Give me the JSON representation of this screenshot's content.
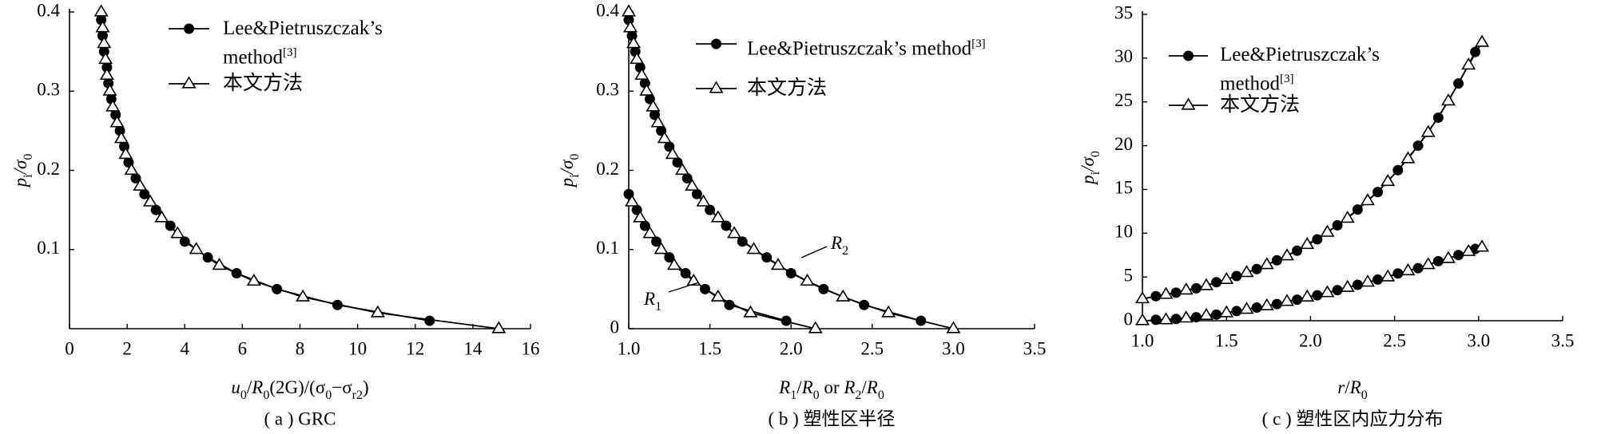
{
  "chart_data": [
    {
      "type": "line",
      "caption": "( a ) GRC",
      "xlabel": [
        {
          "text": "u",
          "italic": true
        },
        {
          "text": "0",
          "sub": true
        },
        {
          "text": "/"
        },
        {
          "text": "R",
          "italic": true
        },
        {
          "text": "0",
          "sub": true
        },
        {
          "text": "(2G)/(σ"
        },
        {
          "text": "0",
          "sub": true
        },
        {
          "text": "−σ"
        },
        {
          "text": "r2",
          "sub": true
        },
        {
          "text": ")"
        }
      ],
      "ylabel": [
        {
          "text": "p",
          "italic": true
        },
        {
          "text": "i",
          "sub": true
        },
        {
          "text": "/σ",
          "italic": true
        },
        {
          "text": "0",
          "sub": true
        }
      ],
      "xlim": [
        0,
        16
      ],
      "xticks": [
        0,
        2,
        4,
        6,
        8,
        10,
        12,
        14,
        16
      ],
      "ylim": [
        0,
        0.4
      ],
      "yticks": [
        0.1,
        0.2,
        0.3,
        0.4
      ],
      "series": [
        {
          "name": "Lee&Pietruszczak’s method",
          "reference": "[3]",
          "marker": "circle",
          "color": "#000000",
          "x": [
            1.1,
            1.15,
            1.2,
            1.3,
            1.35,
            1.45,
            1.6,
            1.75,
            1.9,
            2.05,
            2.3,
            2.6,
            3.0,
            3.5,
            4.0,
            4.8,
            5.8,
            7.2,
            9.3,
            12.5
          ],
          "values": [
            0.39,
            0.37,
            0.35,
            0.33,
            0.31,
            0.29,
            0.27,
            0.25,
            0.23,
            0.21,
            0.19,
            0.17,
            0.15,
            0.13,
            0.11,
            0.09,
            0.07,
            0.05,
            0.03,
            0.01
          ]
        },
        {
          "name": "本文方法",
          "marker": "triangle",
          "color": "#000000",
          "x": [
            1.1,
            1.15,
            1.2,
            1.25,
            1.3,
            1.4,
            1.5,
            1.65,
            1.8,
            1.95,
            2.15,
            2.45,
            2.8,
            3.2,
            3.75,
            4.4,
            5.2,
            6.4,
            8.1,
            10.7,
            14.9
          ],
          "values": [
            0.4,
            0.38,
            0.36,
            0.34,
            0.32,
            0.3,
            0.28,
            0.26,
            0.24,
            0.22,
            0.2,
            0.18,
            0.16,
            0.14,
            0.12,
            0.1,
            0.08,
            0.06,
            0.04,
            0.02,
            0
          ]
        }
      ]
    },
    {
      "type": "line",
      "caption": "( b ) 塑性区半径",
      "xlabel": [
        {
          "text": "R",
          "italic": true
        },
        {
          "text": "1",
          "sub": true
        },
        {
          "text": "/"
        },
        {
          "text": "R",
          "italic": true
        },
        {
          "text": "0",
          "sub": true
        },
        {
          "text": " or "
        },
        {
          "text": "R",
          "italic": true
        },
        {
          "text": "2",
          "sub": true
        },
        {
          "text": "/"
        },
        {
          "text": "R",
          "italic": true
        },
        {
          "text": "0",
          "sub": true
        }
      ],
      "ylabel": [
        {
          "text": "p",
          "italic": true
        },
        {
          "text": "i",
          "sub": true
        },
        {
          "text": "/σ",
          "italic": true
        },
        {
          "text": "0",
          "sub": true
        }
      ],
      "xlim": [
        1,
        3.5
      ],
      "xticks": [
        {
          "value": 1,
          "label": "1.0"
        },
        1.5,
        {
          "value": 2,
          "label": "2.0"
        },
        2.5,
        {
          "value": 3,
          "label": "3.0"
        },
        3.5
      ],
      "ylim": [
        0,
        0.4
      ],
      "yticks": [
        0,
        0.1,
        0.2,
        0.3,
        0.4
      ],
      "annotations": [
        [
          {
            "text": "R",
            "italic": true
          },
          {
            "text": "2",
            "sub": true
          }
        ],
        [
          {
            "text": "R",
            "italic": true
          },
          {
            "text": "1",
            "sub": true
          }
        ]
      ],
      "series": [
        {
          "name": "Lee&Pietruszczak’s method",
          "reference": "[3]",
          "marker": "circle",
          "color": "#000000",
          "x": [
            1.0,
            1.02,
            1.04,
            1.07,
            1.1,
            1.13,
            1.16,
            1.2,
            1.25,
            1.3,
            1.36,
            1.42,
            1.5,
            1.6,
            1.7,
            1.85,
            2.0,
            2.2,
            2.45,
            2.8,
            null,
            1.0,
            1.05,
            1.1,
            1.17,
            1.25,
            1.35,
            1.47,
            1.62,
            1.97
          ],
          "values": [
            0.39,
            0.37,
            0.35,
            0.33,
            0.31,
            0.29,
            0.27,
            0.25,
            0.23,
            0.21,
            0.19,
            0.17,
            0.15,
            0.13,
            0.11,
            0.09,
            0.07,
            0.05,
            0.03,
            0.01,
            null,
            0.17,
            0.15,
            0.13,
            0.11,
            0.09,
            0.07,
            0.05,
            0.03,
            0.01
          ]
        },
        {
          "name": "本文方法",
          "marker": "triangle",
          "color": "#000000",
          "x": [
            1.0,
            1.01,
            1.03,
            1.05,
            1.08,
            1.11,
            1.15,
            1.18,
            1.22,
            1.27,
            1.33,
            1.39,
            1.46,
            1.55,
            1.65,
            1.77,
            1.92,
            2.1,
            2.32,
            2.6,
            3.0,
            null,
            1.02,
            1.07,
            1.13,
            1.2,
            1.28,
            1.4,
            1.55,
            1.75,
            2.15
          ],
          "values": [
            0.4,
            0.38,
            0.36,
            0.34,
            0.32,
            0.3,
            0.28,
            0.26,
            0.24,
            0.22,
            0.2,
            0.18,
            0.16,
            0.14,
            0.12,
            0.1,
            0.08,
            0.06,
            0.04,
            0.02,
            0,
            null,
            0.16,
            0.14,
            0.12,
            0.1,
            0.08,
            0.06,
            0.04,
            0.02,
            0
          ]
        }
      ]
    },
    {
      "type": "line",
      "caption": "( c ) 塑性区内应力分布",
      "xlabel": [
        {
          "text": "r",
          "italic": true
        },
        {
          "text": "/"
        },
        {
          "text": "R",
          "italic": true
        },
        {
          "text": "0",
          "sub": true
        }
      ],
      "ylabel": [
        {
          "text": "p",
          "italic": true
        },
        {
          "text": "i",
          "sub": true
        },
        {
          "text": "/σ",
          "italic": true
        },
        {
          "text": "0",
          "sub": true
        }
      ],
      "xlim": [
        1,
        3.5
      ],
      "xticks": [
        {
          "value": 1,
          "label": "1.0"
        },
        1.5,
        {
          "value": 2,
          "label": "2.0"
        },
        2.5,
        {
          "value": 3,
          "label": "3.0"
        },
        3.5
      ],
      "ylim": [
        0,
        35
      ],
      "yticks": [
        0,
        5,
        10,
        15,
        20,
        25,
        30,
        35
      ],
      "series": [
        {
          "name": "Lee&Pietruszczak’s method",
          "reference": "[3]",
          "marker": "circle",
          "color": "#000000",
          "x": [
            1.08,
            1.2,
            1.32,
            1.44,
            1.56,
            1.68,
            1.8,
            1.92,
            2.04,
            2.16,
            2.28,
            2.4,
            2.52,
            2.64,
            2.76,
            2.88,
            2.98,
            null,
            1.08,
            1.2,
            1.32,
            1.44,
            1.56,
            1.68,
            1.8,
            1.92,
            2.04,
            2.16,
            2.28,
            2.4,
            2.52,
            2.64,
            2.76,
            2.88,
            2.98
          ],
          "values": [
            2.8,
            3.2,
            3.7,
            4.4,
            5.1,
            5.9,
            6.9,
            8.0,
            9.3,
            10.9,
            12.7,
            14.7,
            17.2,
            20.0,
            23.2,
            27.1,
            30.7,
            null,
            0.1,
            0.2,
            0.4,
            0.7,
            1.1,
            1.5,
            1.9,
            2.4,
            2.9,
            3.5,
            4.1,
            4.7,
            5.4,
            6.0,
            6.8,
            7.5,
            8.2
          ]
        },
        {
          "name": "本文方法",
          "marker": "triangle",
          "color": "#000000",
          "x": [
            1.0,
            1.14,
            1.26,
            1.38,
            1.5,
            1.62,
            1.74,
            1.86,
            1.98,
            2.1,
            2.22,
            2.34,
            2.46,
            2.58,
            2.7,
            2.82,
            2.94,
            3.02,
            null,
            1.0,
            1.14,
            1.26,
            1.38,
            1.5,
            1.62,
            1.74,
            1.86,
            1.98,
            2.1,
            2.22,
            2.34,
            2.46,
            2.58,
            2.7,
            2.82,
            2.94,
            3.02
          ],
          "values": [
            2.5,
            3.0,
            3.5,
            4.0,
            4.7,
            5.5,
            6.4,
            7.4,
            8.7,
            10.1,
            11.7,
            13.7,
            15.9,
            18.5,
            21.5,
            25.1,
            29.2,
            31.8,
            null,
            0,
            0.1,
            0.3,
            0.6,
            0.9,
            1.3,
            1.7,
            2.2,
            2.7,
            3.2,
            3.8,
            4.4,
            5.0,
            5.7,
            6.4,
            7.1,
            7.9,
            8.4
          ]
        }
      ]
    }
  ]
}
